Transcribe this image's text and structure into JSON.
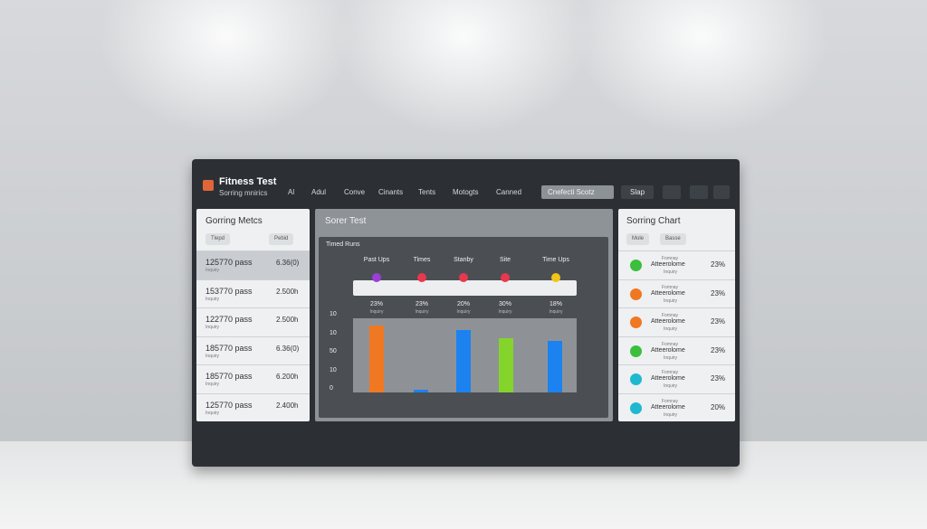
{
  "header": {
    "title": "Fitness Test",
    "subtitle": "Sorring mnirics",
    "nav": [
      "Al",
      "Adul",
      "Conve",
      "Cinants",
      "Tents",
      "Motogts",
      "Canned"
    ],
    "search": "Cnefecti Scotz",
    "button": "Slap"
  },
  "left_panel": {
    "title": "Gorring Metcs",
    "chips": [
      "Tlepd",
      "Pebid"
    ],
    "rows": [
      {
        "name": "125770 pass",
        "sub": "Inquiry",
        "value": "6.36(0)"
      },
      {
        "name": "153770 pass",
        "sub": "Inquiry",
        "value": "2.500h"
      },
      {
        "name": "122770 pass",
        "sub": "Inquiry",
        "value": "2.500h"
      },
      {
        "name": "185770 pass",
        "sub": "Inquiry",
        "value": "6.36(0)"
      },
      {
        "name": "185770 pass",
        "sub": "Inquiry",
        "value": "6.200h"
      },
      {
        "name": "125770 pass",
        "sub": "Inquiry",
        "value": "2.400h"
      }
    ]
  },
  "middle_panel": {
    "title": "Sorer Test",
    "chart_title": "Timed Runs",
    "columns": [
      {
        "label": "Past Ups",
        "percent": "23%",
        "sub": "Inquiry"
      },
      {
        "label": "Times",
        "percent": "23%",
        "sub": "Inquiry"
      },
      {
        "label": "Stanby",
        "percent": "20%",
        "sub": "Inquiry"
      },
      {
        "label": "Site",
        "percent": "30%",
        "sub": "Inquiry"
      },
      {
        "label": "Time Ups",
        "percent": "18%",
        "sub": "Inquiry"
      }
    ],
    "y_labels": [
      "10",
      "10",
      "50",
      "10",
      "0"
    ]
  },
  "right_panel": {
    "title": "Sorring Chart",
    "chips": [
      "Mole",
      "Basse"
    ],
    "rows": [
      {
        "top": "Fomnay",
        "name": "Atteerolome",
        "sub": "Inquiry",
        "value": "23%"
      },
      {
        "top": "Fomnay",
        "name": "Atteerolome",
        "sub": "Inquiry",
        "value": "23%"
      },
      {
        "top": "Fomnay",
        "name": "Atteerolome",
        "sub": "Inquiry",
        "value": "23%"
      },
      {
        "top": "Fomnay",
        "name": "Atteerolome",
        "sub": "Inquiry",
        "value": "23%"
      },
      {
        "top": "Fomnay",
        "name": "Atteerolome",
        "sub": "Inquiry",
        "value": "23%"
      },
      {
        "top": "Fomnay",
        "name": "Atteerolome",
        "sub": "Inquiry",
        "value": "20%"
      }
    ]
  }
}
